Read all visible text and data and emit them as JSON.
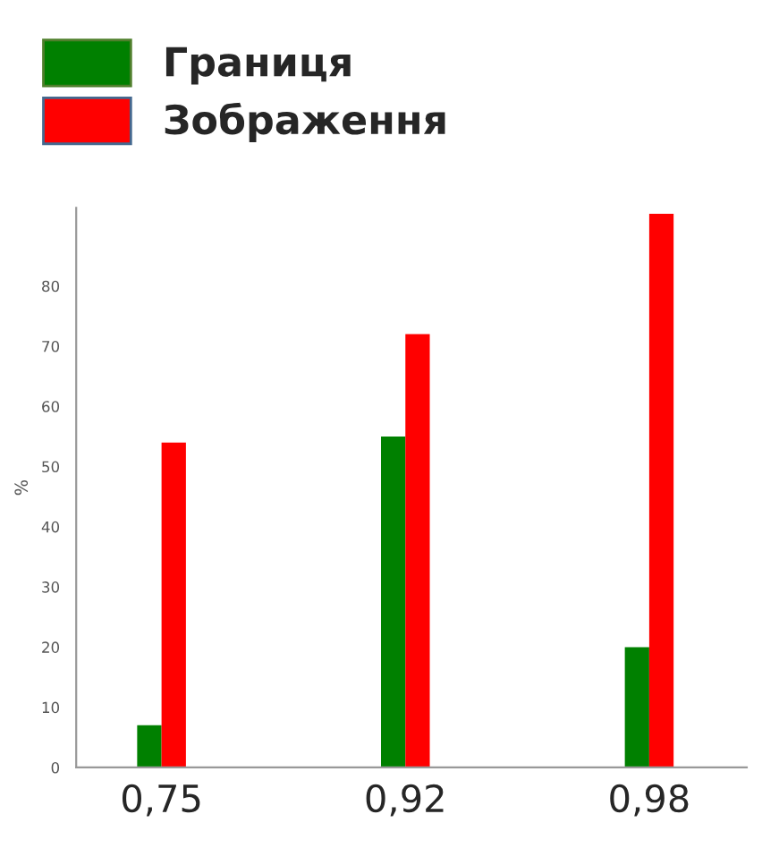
{
  "chart_data": {
    "type": "bar",
    "categories": [
      "0,75",
      "0,92",
      "0,98"
    ],
    "ylabel": "%",
    "series": [
      {
        "name": "Границя",
        "color": "#008000",
        "values": [
          7,
          55,
          20
        ]
      },
      {
        "name": "Зображення",
        "color": "#ff0000",
        "values": [
          54,
          72,
          92
        ]
      }
    ],
    "ylim": [
      0,
      93
    ],
    "yticks": [
      0,
      10,
      20,
      30,
      40,
      50,
      60,
      70,
      80
    ],
    "grid": false,
    "legend": "top left"
  }
}
